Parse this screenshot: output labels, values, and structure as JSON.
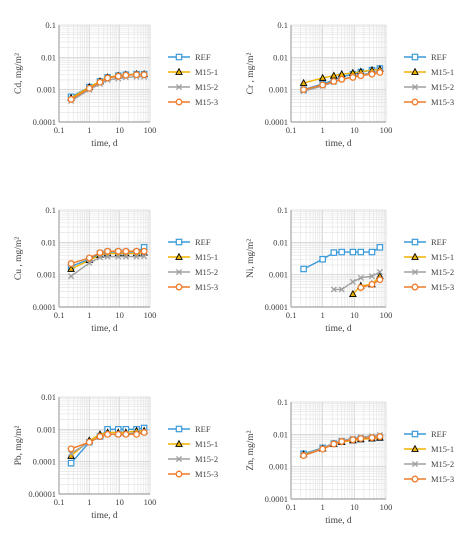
{
  "chart_data": [
    {
      "type": "line",
      "xscale": "log",
      "yscale": "log",
      "xlim": [
        0.1,
        100
      ],
      "ylim": [
        0.0001,
        0.1
      ],
      "xticks": [
        "0.1",
        "1",
        "10",
        "100"
      ],
      "yticks": [
        "0.0001",
        "0.001",
        "0.01",
        "0.1"
      ],
      "xlabel": "time, d",
      "ylabel": "Cd, mg/m²",
      "legend": "right",
      "series": [
        {
          "name": "REF",
          "color": "#3a9ad9",
          "marker": "square",
          "x": [
            0.25,
            1,
            2.25,
            4,
            9,
            16,
            36,
            64
          ],
          "y": [
            0.0006,
            0.0012,
            0.0018,
            0.0024,
            0.0027,
            0.0029,
            0.003,
            0.003
          ]
        },
        {
          "name": "M15-1",
          "color": "#f0b400",
          "marker": "triangle",
          "x": [
            0.25,
            1,
            2.25,
            4,
            9,
            16,
            36,
            64
          ],
          "y": [
            0.00055,
            0.0012,
            0.0018,
            0.0024,
            0.0027,
            0.0029,
            0.003,
            0.003
          ]
        },
        {
          "name": "M15-2",
          "color": "#a0a0a0",
          "marker": "x",
          "x": [
            0.25,
            1,
            2.25,
            4,
            9,
            16,
            36,
            64
          ],
          "y": [
            0.00045,
            0.001,
            0.0015,
            0.002,
            0.0022,
            0.0024,
            0.0025,
            0.0025
          ]
        },
        {
          "name": "M15-3",
          "color": "#f07c2a",
          "marker": "circle",
          "x": [
            0.25,
            1,
            2.25,
            4,
            9,
            16,
            36,
            64
          ],
          "y": [
            0.0005,
            0.0011,
            0.0017,
            0.0023,
            0.0026,
            0.0028,
            0.0029,
            0.0029
          ]
        }
      ]
    },
    {
      "type": "line",
      "xscale": "log",
      "yscale": "log",
      "xlim": [
        0.1,
        100
      ],
      "ylim": [
        0.0001,
        0.1
      ],
      "xticks": [
        "0.1",
        "1",
        "10",
        "100"
      ],
      "yticks": [
        "0.0001",
        "0.001",
        "0.01",
        "0.1"
      ],
      "xlabel": "time, d",
      "ylabel": "Cr , mg/m²",
      "legend": "right",
      "series": [
        {
          "name": "REF",
          "color": "#3a9ad9",
          "marker": "square",
          "x": [
            0.25,
            1,
            2.25,
            4,
            9,
            16,
            36,
            64
          ],
          "y": [
            0.001,
            0.0015,
            0.002,
            0.0025,
            0.003,
            0.0035,
            0.004,
            0.0045
          ]
        },
        {
          "name": "M15-1",
          "color": "#f0b400",
          "marker": "triangle",
          "x": [
            0.25,
            1,
            2.25,
            4,
            9,
            16,
            36,
            64
          ],
          "y": [
            0.0016,
            0.0023,
            0.0027,
            0.003,
            0.0033,
            0.0036,
            0.004,
            0.0043
          ]
        },
        {
          "name": "M15-2",
          "color": "#a0a0a0",
          "marker": "x",
          "x": [
            0.25,
            1,
            2.25,
            4,
            9,
            16,
            36,
            64
          ],
          "y": [
            0.0009,
            0.0013,
            0.0017,
            0.0021,
            0.0025,
            0.0029,
            0.0033,
            0.0037
          ]
        },
        {
          "name": "M15-3",
          "color": "#f07c2a",
          "marker": "circle",
          "x": [
            0.25,
            1,
            2.25,
            4,
            9,
            16,
            36,
            64
          ],
          "y": [
            0.001,
            0.0014,
            0.0018,
            0.0021,
            0.0024,
            0.0027,
            0.003,
            0.0034
          ]
        }
      ]
    },
    {
      "type": "line",
      "xscale": "log",
      "yscale": "log",
      "xlim": [
        0.1,
        100
      ],
      "ylim": [
        0.0001,
        0.1
      ],
      "xticks": [
        "0.1",
        "1",
        "10",
        "100"
      ],
      "yticks": [
        "0.0001",
        "0.001",
        "0.01",
        "0.1"
      ],
      "xlabel": "time, d",
      "ylabel": "Cu , mg/m²",
      "legend": "right",
      "series": [
        {
          "name": "REF",
          "color": "#3a9ad9",
          "marker": "square",
          "x": [
            0.25,
            1,
            2.25,
            4,
            9,
            16,
            36,
            64
          ],
          "y": [
            0.0018,
            0.003,
            0.0045,
            0.005,
            0.005,
            0.005,
            0.005,
            0.007
          ]
        },
        {
          "name": "M15-1",
          "color": "#f0b400",
          "marker": "triangle",
          "x": [
            0.25,
            1,
            2.25,
            4,
            9,
            16,
            36,
            64
          ],
          "y": [
            0.0015,
            0.0028,
            0.004,
            0.0045,
            0.0045,
            0.0045,
            0.0045,
            0.0048
          ]
        },
        {
          "name": "M15-2",
          "color": "#a0a0a0",
          "marker": "x",
          "x": [
            0.25,
            1,
            2.25,
            4,
            9,
            16,
            36,
            64
          ],
          "y": [
            0.0009,
            0.0023,
            0.0034,
            0.0036,
            0.0036,
            0.0036,
            0.0036,
            0.0037
          ]
        },
        {
          "name": "M15-3",
          "color": "#f07c2a",
          "marker": "circle",
          "x": [
            0.25,
            1,
            2.25,
            4,
            9,
            16,
            36,
            64
          ],
          "y": [
            0.0022,
            0.0033,
            0.0048,
            0.0053,
            0.0053,
            0.0053,
            0.0053,
            0.0053
          ]
        }
      ]
    },
    {
      "type": "line",
      "xscale": "log",
      "yscale": "log",
      "xlim": [
        0.1,
        100
      ],
      "ylim": [
        0.0001,
        0.1
      ],
      "xticks": [
        "0.1",
        "1",
        "10",
        "100"
      ],
      "yticks": [
        "0.0001",
        "0.001",
        "0.01",
        "0.1"
      ],
      "xlabel": "time, d",
      "ylabel": "Ni, mg/m²",
      "legend": "right",
      "series": [
        {
          "name": "REF",
          "color": "#3a9ad9",
          "marker": "square",
          "x": [
            0.25,
            1,
            2.25,
            4,
            9,
            16,
            36,
            64
          ],
          "y": [
            0.0015,
            0.003,
            0.0048,
            0.005,
            0.005,
            0.005,
            0.005,
            0.007
          ]
        },
        {
          "name": "M15-1",
          "color": "#f0b400",
          "marker": "triangle",
          "x": [
            9,
            16,
            36,
            64
          ],
          "y": [
            0.00025,
            0.00045,
            0.0005,
            0.0009
          ]
        },
        {
          "name": "M15-2",
          "color": "#a0a0a0",
          "marker": "x",
          "x": [
            2.25,
            4,
            9,
            16,
            36,
            64
          ],
          "y": [
            0.00035,
            0.00035,
            0.0006,
            0.0008,
            0.0009,
            0.0012
          ]
        },
        {
          "name": "M15-3",
          "color": "#f07c2a",
          "marker": "circle",
          "x": [
            16,
            36,
            64
          ],
          "y": [
            0.0004,
            0.0005,
            0.0007
          ]
        }
      ]
    },
    {
      "type": "line",
      "xscale": "log",
      "yscale": "log",
      "xlim": [
        0.1,
        100
      ],
      "ylim": [
        1e-05,
        0.01
      ],
      "xticks": [
        "0.1",
        "1",
        "10",
        "100"
      ],
      "yticks": [
        "0.00001",
        "0.0001",
        "0.001",
        "0.01"
      ],
      "xlabel": "time, d",
      "ylabel": "Pb, mg/m²",
      "legend": "right",
      "series": [
        {
          "name": "REF",
          "color": "#3a9ad9",
          "marker": "square",
          "x": [
            0.25,
            1,
            2.25,
            4,
            9,
            16,
            36,
            64
          ],
          "y": [
            9e-05,
            0.0004,
            0.0006,
            0.001,
            0.001,
            0.001,
            0.001,
            0.0011
          ]
        },
        {
          "name": "M15-1",
          "color": "#f0b400",
          "marker": "triangle",
          "x": [
            0.25,
            1,
            2.25,
            4,
            9,
            16,
            36,
            64
          ],
          "y": [
            0.00015,
            0.00045,
            0.0007,
            0.0008,
            0.0008,
            0.0008,
            0.0009,
            0.0009
          ]
        },
        {
          "name": "M15-2",
          "color": "#a0a0a0",
          "marker": "x",
          "x": [
            0.25,
            1,
            2.25,
            4,
            9,
            16,
            36,
            64
          ],
          "y": [
            0.00018,
            0.0004,
            0.0006,
            0.0007,
            0.0007,
            0.0007,
            0.0008,
            0.0008
          ]
        },
        {
          "name": "M15-3",
          "color": "#f07c2a",
          "marker": "circle",
          "x": [
            0.25,
            1,
            2.25,
            4,
            9,
            16,
            36,
            64
          ],
          "y": [
            0.00025,
            0.0004,
            0.0006,
            0.0007,
            0.0007,
            0.0007,
            0.0007,
            0.0008
          ]
        }
      ]
    },
    {
      "type": "line",
      "xscale": "log",
      "yscale": "log",
      "xlim": [
        0.1,
        100
      ],
      "ylim": [
        0.0001,
        0.1
      ],
      "xticks": [
        "0.1",
        "1",
        "10",
        "100"
      ],
      "yticks": [
        "0.0001",
        "0.001",
        "0.01",
        "0.1"
      ],
      "xlabel": "time, d",
      "ylabel": "Zn, mg/m²",
      "legend": "right",
      "series": [
        {
          "name": "REF",
          "color": "#3a9ad9",
          "marker": "square",
          "x": [
            0.25,
            1,
            2.25,
            4,
            9,
            16,
            36,
            64
          ],
          "y": [
            0.0025,
            0.0038,
            0.0052,
            0.006,
            0.0067,
            0.0072,
            0.0076,
            0.008
          ]
        },
        {
          "name": "M15-1",
          "color": "#f0b400",
          "marker": "triangle",
          "x": [
            0.25,
            1,
            2.25,
            4,
            9,
            16,
            36,
            64
          ],
          "y": [
            0.0024,
            0.0036,
            0.005,
            0.0058,
            0.0065,
            0.007,
            0.0074,
            0.0078
          ]
        },
        {
          "name": "M15-2",
          "color": "#a0a0a0",
          "marker": "x",
          "x": [
            0.25,
            1,
            2.25,
            4,
            9,
            16,
            36,
            64
          ],
          "y": [
            0.0023,
            0.0037,
            0.0054,
            0.0065,
            0.0075,
            0.0082,
            0.0088,
            0.0095
          ]
        },
        {
          "name": "M15-3",
          "color": "#f07c2a",
          "marker": "circle",
          "x": [
            0.25,
            1,
            2.25,
            4,
            9,
            16,
            36,
            64
          ],
          "y": [
            0.0022,
            0.0035,
            0.005,
            0.006,
            0.0068,
            0.0074,
            0.0079,
            0.0085
          ]
        }
      ]
    }
  ]
}
